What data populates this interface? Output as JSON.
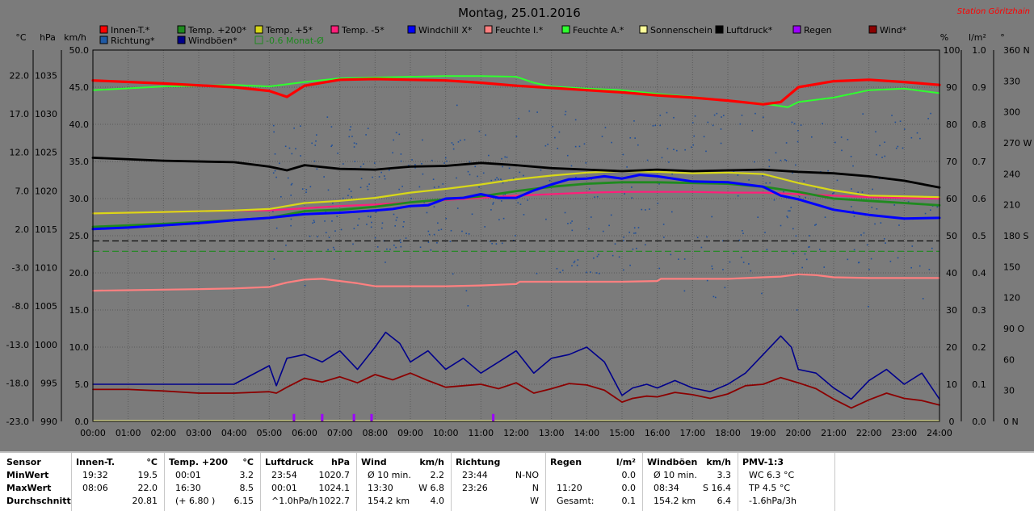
{
  "title": "Montag, 25.01.2016",
  "station": "Station Göritzhain",
  "axis_units": {
    "temp": "°C",
    "press": "hPa",
    "wind": "km/h",
    "pct": "%",
    "rain": "l/m²",
    "dir": "°"
  },
  "legend": [
    {
      "label": "Innen-T.*",
      "color": "#ff0000"
    },
    {
      "label": "Temp. +200*",
      "color": "#1f8a1f"
    },
    {
      "label": "Temp. +5*",
      "color": "#d8d818"
    },
    {
      "label": "Temp. -5*",
      "color": "#ff1f7a"
    },
    {
      "label": "Windchill X*",
      "color": "#0000ff"
    },
    {
      "label": "Feuchte I.*",
      "color": "#ff8080"
    },
    {
      "label": "Feuchte A.*",
      "color": "#2fff2f"
    },
    {
      "label": "Sonnenschein",
      "color": "#ffff9a"
    },
    {
      "label": "Luftdruck*",
      "color": "#000000"
    },
    {
      "label": "Regen",
      "color": "#9d00ff"
    },
    {
      "label": "Wind*",
      "color": "#8b0000"
    },
    {
      "label": "Richtung*",
      "color": "#1f5aa5"
    },
    {
      "label": "Windböen*",
      "color": "#00008b"
    },
    {
      "label": "-0.6 Monat-Ø",
      "color": "#1f8a1f"
    }
  ],
  "chart_data": {
    "type": "line",
    "x_ticks": [
      "00:00",
      "01:00",
      "02:00",
      "03:00",
      "04:00",
      "05:00",
      "06:00",
      "07:00",
      "08:00",
      "09:00",
      "10:00",
      "11:00",
      "12:00",
      "13:00",
      "14:00",
      "15:00",
      "16:00",
      "17:00",
      "18:00",
      "19:00",
      "20:00",
      "21:00",
      "22:00",
      "23:00",
      "24:00"
    ],
    "wind_axis": {
      "ticks": [
        "0.0",
        "5.0",
        "10.0",
        "15.0",
        "20.0",
        "25.0",
        "30.0",
        "35.0",
        "40.0",
        "45.0",
        "50.0"
      ],
      "ylim": [
        0,
        50
      ]
    },
    "temp_axis": {
      "ticks": [
        "-23.0",
        "-18.0",
        "-13.0",
        "-8.0",
        "-3.0",
        "2.0",
        "7.0",
        "12.0",
        "17.0",
        "22.0"
      ]
    },
    "press_axis": {
      "ticks": [
        "990",
        "995",
        "1000",
        "1005",
        "1010",
        "1015",
        "1020",
        "1025",
        "1030",
        "1035"
      ]
    },
    "pct_axis": {
      "ticks": [
        "0",
        "10",
        "20",
        "30",
        "40",
        "50",
        "60",
        "70",
        "80",
        "90",
        "100"
      ],
      "ylim": [
        0,
        100
      ]
    },
    "rain_axis": {
      "ticks": [
        "0.0",
        "0.1",
        "0.2",
        "0.3",
        "0.4",
        "0.5",
        "0.6",
        "0.7",
        "0.8",
        "0.9",
        "1.0"
      ]
    },
    "dir_axis": {
      "ticks": [
        "0 N",
        "30",
        "60",
        "90 O",
        "120",
        "150",
        "180 S",
        "210",
        "240",
        "270 W",
        "300",
        "330",
        "360 N"
      ]
    },
    "series": [
      {
        "name": "Innen-T.*",
        "color": "#ff0000",
        "width": 3.2,
        "t": [
          0,
          2,
          4,
          5,
          5.5,
          6,
          7,
          8,
          9,
          10,
          11,
          12,
          13,
          14,
          15,
          16,
          17,
          18,
          19,
          19.5,
          20,
          21,
          22,
          23,
          24
        ],
        "y": [
          45.9,
          45.5,
          45.0,
          44.5,
          43.7,
          45.2,
          46.0,
          46.1,
          46.0,
          45.9,
          45.6,
          45.2,
          44.9,
          44.6,
          44.3,
          43.9,
          43.6,
          43.2,
          42.7,
          43.0,
          45.0,
          45.8,
          46.0,
          45.7,
          45.3
        ]
      },
      {
        "name": "Feuchte A.*",
        "color": "#2fff2f",
        "width": 2.0,
        "t": [
          0,
          2,
          4,
          5,
          6,
          7,
          8,
          9,
          10,
          11,
          12,
          12.5,
          13,
          14,
          15,
          16,
          17,
          18,
          19,
          19.7,
          20,
          21,
          22,
          23,
          24
        ],
        "y": [
          44.6,
          45.1,
          45.3,
          45.1,
          45.7,
          46.2,
          46.3,
          46.4,
          46.5,
          46.5,
          46.4,
          45.6,
          45.1,
          44.8,
          44.6,
          44.1,
          43.7,
          43.2,
          42.8,
          42.3,
          43.0,
          43.6,
          44.6,
          44.8,
          44.2
        ]
      },
      {
        "name": "Luftdruck*",
        "color": "#000000",
        "width": 2.8,
        "t": [
          0,
          2,
          4,
          5,
          5.5,
          6,
          7,
          8,
          9,
          10,
          11,
          12,
          13,
          14,
          15,
          16,
          17,
          18,
          19,
          20,
          21,
          22,
          23,
          24
        ],
        "y": [
          35.5,
          35.1,
          34.9,
          34.3,
          33.8,
          34.5,
          34.0,
          33.9,
          34.3,
          34.4,
          34.8,
          34.5,
          34.1,
          33.9,
          33.7,
          33.9,
          33.7,
          33.8,
          33.9,
          33.6,
          33.4,
          33.0,
          32.4,
          31.5
        ]
      },
      {
        "name": "Temp. +5*",
        "color": "#d8d818",
        "width": 2.2,
        "t": [
          0,
          2,
          4,
          5,
          6,
          7,
          8,
          9,
          10,
          11,
          12,
          13,
          14,
          15,
          16,
          17,
          18,
          19,
          20,
          21,
          22,
          23,
          24
        ],
        "y": [
          28.0,
          28.2,
          28.4,
          28.6,
          29.4,
          29.7,
          30.1,
          30.8,
          31.3,
          31.9,
          32.6,
          33.1,
          33.5,
          33.7,
          33.6,
          33.4,
          33.5,
          33.3,
          32.1,
          31.1,
          30.4,
          30.3,
          30.2
        ]
      },
      {
        "name": "Temp. -5*",
        "color": "#ff1f7a",
        "width": 2.2,
        "t": [
          0,
          2,
          4,
          5,
          6,
          7,
          8,
          9,
          10,
          11,
          12,
          13,
          14,
          15,
          16,
          17,
          18,
          19,
          20,
          21,
          22,
          23,
          24
        ],
        "y": [
          28.0,
          28.2,
          28.4,
          28.4,
          28.7,
          29.0,
          29.2,
          29.5,
          29.8,
          30.1,
          30.4,
          30.6,
          30.8,
          30.9,
          30.9,
          30.9,
          30.8,
          30.8,
          30.6,
          30.4,
          30.2,
          30.1,
          30.0
        ]
      },
      {
        "name": "Temp. +200*",
        "color": "#1f8a1f",
        "width": 2.8,
        "t": [
          0,
          2,
          4,
          5,
          6,
          7,
          8,
          9,
          10,
          11,
          12,
          13,
          14,
          15,
          16,
          17,
          18,
          19,
          20,
          21,
          22,
          23,
          24
        ],
        "y": [
          26.2,
          26.6,
          27.1,
          27.4,
          28.3,
          28.5,
          28.9,
          29.5,
          29.9,
          30.3,
          31.0,
          31.6,
          32.0,
          32.2,
          32.2,
          32.1,
          32.0,
          31.6,
          30.9,
          30.0,
          29.7,
          29.4,
          29.1
        ]
      },
      {
        "name": "Windchill X*",
        "color": "#0000ff",
        "width": 3.0,
        "t": [
          0,
          1,
          2,
          3,
          4,
          5,
          6,
          7,
          8,
          8.5,
          9,
          9.5,
          10,
          10.5,
          11,
          11.5,
          12,
          12.5,
          13,
          13.5,
          14,
          14.5,
          15,
          15.5,
          16,
          17,
          18,
          19,
          19.5,
          20,
          21,
          22,
          23,
          24
        ],
        "y": [
          25.9,
          26.1,
          26.4,
          26.7,
          27.1,
          27.4,
          27.9,
          28.1,
          28.4,
          28.6,
          29.0,
          29.1,
          30.0,
          30.1,
          30.6,
          30.1,
          30.1,
          31.1,
          31.9,
          32.6,
          32.7,
          33.0,
          32.7,
          33.2,
          33.0,
          32.3,
          32.2,
          31.6,
          30.4,
          29.9,
          28.5,
          27.8,
          27.3,
          27.4
        ]
      },
      {
        "name": "Feuchte I.*",
        "color": "#ff8080",
        "width": 2.2,
        "t": [
          0,
          3,
          4,
          5,
          5.5,
          6,
          6.5,
          7,
          7.5,
          8,
          10,
          11,
          12,
          12.1,
          13,
          14,
          15,
          16,
          16.1,
          17,
          18,
          19,
          19.5,
          20,
          20.5,
          21,
          22,
          23,
          24
        ],
        "y": [
          17.6,
          17.8,
          17.9,
          18.1,
          18.7,
          19.1,
          19.2,
          18.9,
          18.6,
          18.2,
          18.2,
          18.3,
          18.5,
          18.8,
          18.8,
          18.8,
          18.8,
          18.9,
          19.2,
          19.2,
          19.2,
          19.4,
          19.5,
          19.8,
          19.7,
          19.4,
          19.3,
          19.3,
          19.3
        ]
      },
      {
        "name": "Windböen*",
        "color": "#00008b",
        "width": 1.6,
        "t": [
          0,
          1,
          2,
          3,
          4,
          5,
          5.2,
          5.5,
          6,
          6.5,
          7,
          7.5,
          8,
          8.3,
          8.7,
          9,
          9.5,
          10,
          10.5,
          11,
          11.5,
          12,
          12.5,
          13,
          13.5,
          14,
          14.5,
          15,
          15.3,
          15.7,
          16,
          16.5,
          17,
          17.5,
          18,
          18.5,
          19,
          19.5,
          19.8,
          20,
          20.5,
          21,
          21.5,
          22,
          22.5,
          23,
          23.5,
          24
        ],
        "y": [
          5.0,
          5.0,
          5.0,
          5.0,
          5.0,
          7.5,
          4.8,
          8.5,
          9.0,
          8.0,
          9.5,
          7.0,
          10.0,
          12.0,
          10.5,
          8.0,
          9.5,
          7.0,
          8.5,
          6.5,
          8.0,
          9.5,
          6.5,
          8.5,
          9.0,
          10.0,
          8.0,
          3.5,
          4.5,
          5.0,
          4.5,
          5.5,
          4.5,
          4.0,
          5.0,
          6.5,
          9.0,
          11.5,
          10.0,
          7.0,
          6.5,
          4.5,
          3.0,
          5.5,
          7.0,
          5.0,
          6.5,
          3.0
        ]
      },
      {
        "name": "Wind*",
        "color": "#8b0000",
        "width": 1.8,
        "t": [
          0,
          1,
          2,
          3,
          4,
          5,
          5.2,
          5.5,
          6,
          6.5,
          7,
          7.5,
          8,
          8.5,
          9,
          9.5,
          10,
          10.5,
          11,
          11.5,
          12,
          12.5,
          13,
          13.5,
          14,
          14.5,
          15,
          15.3,
          15.7,
          16,
          16.5,
          17,
          17.5,
          18,
          18.5,
          19,
          19.5,
          20,
          20.5,
          21,
          21.5,
          22,
          22.5,
          23,
          23.5,
          24
        ],
        "y": [
          4.3,
          4.3,
          4.1,
          3.8,
          3.8,
          4.0,
          3.8,
          4.6,
          5.8,
          5.3,
          6.0,
          5.2,
          6.3,
          5.6,
          6.5,
          5.5,
          4.6,
          4.8,
          5.0,
          4.4,
          5.2,
          3.8,
          4.4,
          5.1,
          4.9,
          4.2,
          2.6,
          3.1,
          3.4,
          3.3,
          3.9,
          3.6,
          3.1,
          3.7,
          4.8,
          5.0,
          5.9,
          5.2,
          4.4,
          3.0,
          1.8,
          2.9,
          3.8,
          3.1,
          2.8,
          2.2
        ]
      },
      {
        "name": "Sonnenschein",
        "color": "#ffff9a",
        "width": 1.2,
        "t": [
          0,
          24
        ],
        "y": [
          0.1,
          0.1
        ]
      }
    ],
    "ref_lines": [
      {
        "name": "Luftdruck Ref",
        "color": "#000000",
        "dash": "8,4",
        "y": 24.3
      },
      {
        "name": "-0.6 Monat-Ø",
        "color": "#1f8a1f",
        "dash": "8,4",
        "y": 22.9
      }
    ],
    "rain_ticks_t": [
      5.7,
      6.5,
      7.4,
      7.9,
      11.35
    ],
    "rain_ticks_height": 1.0
  },
  "stats": {
    "labels": {
      "h": "Sensor",
      "min": "MinWert",
      "max": "MaxWert",
      "avg": "Durchschnitt"
    },
    "blocks": [
      {
        "title": "Innen-T.",
        "unit": "°C",
        "rows": [
          [
            "19:32",
            "19.5"
          ],
          [
            "08:06",
            "22.0"
          ],
          [
            "",
            "20.81"
          ]
        ]
      },
      {
        "title": "Temp. +200",
        "unit": "°C",
        "rows": [
          [
            "00:01",
            "3.2"
          ],
          [
            "16:30",
            "8.5"
          ],
          [
            "(+ 6.80 )",
            "6.15"
          ]
        ]
      },
      {
        "title": "Luftdruck",
        "unit": "hPa",
        "rows": [
          [
            "23:54",
            "1020.7"
          ],
          [
            "00:01",
            "1024.1"
          ],
          [
            "^1.0hPa/h",
            "1022.7"
          ]
        ]
      },
      {
        "title": "Wind",
        "unit": "km/h",
        "rows": [
          [
            "Ø 10 min.",
            "2.2"
          ],
          [
            "13:30",
            "W 6.8"
          ],
          [
            "154.2 km",
            "4.0"
          ]
        ]
      },
      {
        "title": "Richtung",
        "unit": "",
        "rows": [
          [
            "23:44",
            "N-NO"
          ],
          [
            "23:26",
            "N"
          ],
          [
            "",
            "W"
          ]
        ]
      },
      {
        "title": "Regen",
        "unit": "l/m²",
        "rows": [
          [
            "",
            "0.0"
          ],
          [
            "11:20",
            "0.0"
          ],
          [
            "Gesamt:",
            "0.1"
          ]
        ]
      },
      {
        "title": "Windböen",
        "unit": "km/h",
        "rows": [
          [
            "Ø 10 min.",
            "3.3"
          ],
          [
            "08:34",
            "S 16.4"
          ],
          [
            "154.2 km",
            "6.4"
          ]
        ]
      },
      {
        "title": "PMV-1:3",
        "unit": "",
        "rows": [
          [
            "WC 6.3 °C",
            ""
          ],
          [
            "TP 4.5 °C",
            ""
          ],
          [
            "-1.6hPa/3h",
            ""
          ]
        ]
      }
    ]
  }
}
